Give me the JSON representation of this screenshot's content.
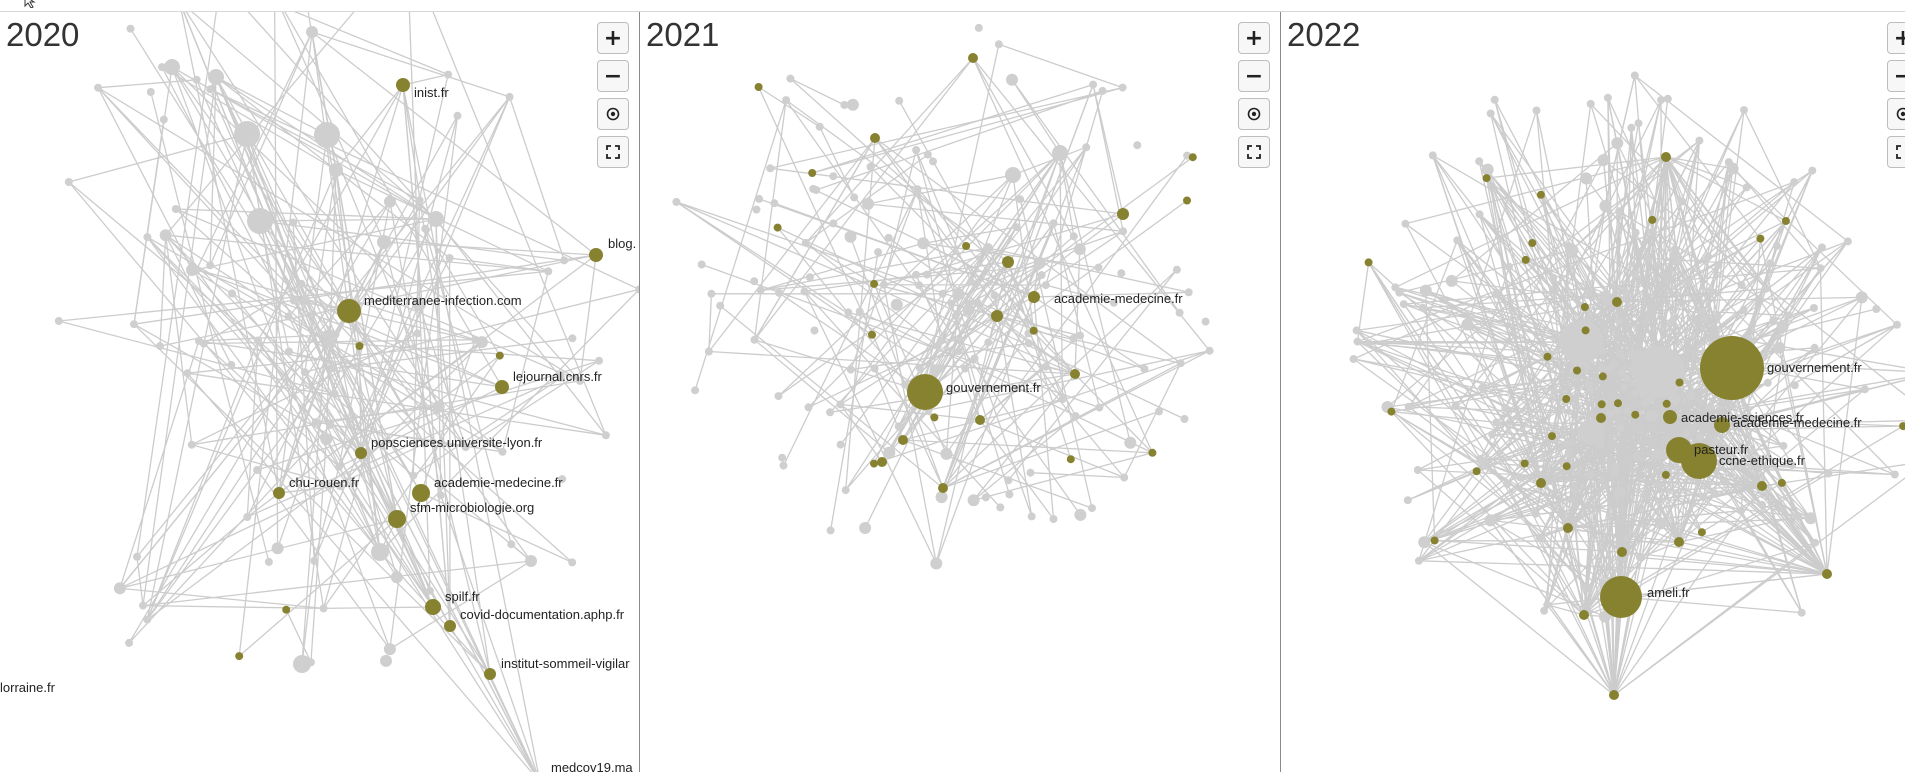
{
  "colors": {
    "node_highlight": "#878230",
    "node_default": "#cfcfcf",
    "edge": "#cccccc"
  },
  "controls": {
    "zoom_in": "+",
    "zoom_out": "−",
    "recenter_icon": "target-icon",
    "fullscreen_icon": "fullscreen-icon"
  },
  "panels": [
    {
      "year": "2020",
      "labels": [
        "inist.fr",
        "blog.",
        "mediterranee-infection.com",
        "lejournal.cnrs.fr",
        "popsciences.universite-lyon.fr",
        "chu-rouen.fr",
        "academie-medecine.fr",
        "sfm-microbiologie.org",
        "spilf.fr",
        "covid-documentation.aphp.fr",
        "institut-sommeil-vigilar",
        "lorraine.fr",
        "medcov19.ma"
      ]
    },
    {
      "year": "2021",
      "labels": [
        "academie-medecine.fr",
        "gouvernement.fr"
      ]
    },
    {
      "year": "2022",
      "labels": [
        "gouvernement.fr",
        "academie-sciences.fr",
        "academie-medecine.fr",
        "pasteur.fr",
        "ccne-ethique.fr",
        "ameli.fr"
      ]
    }
  ]
}
